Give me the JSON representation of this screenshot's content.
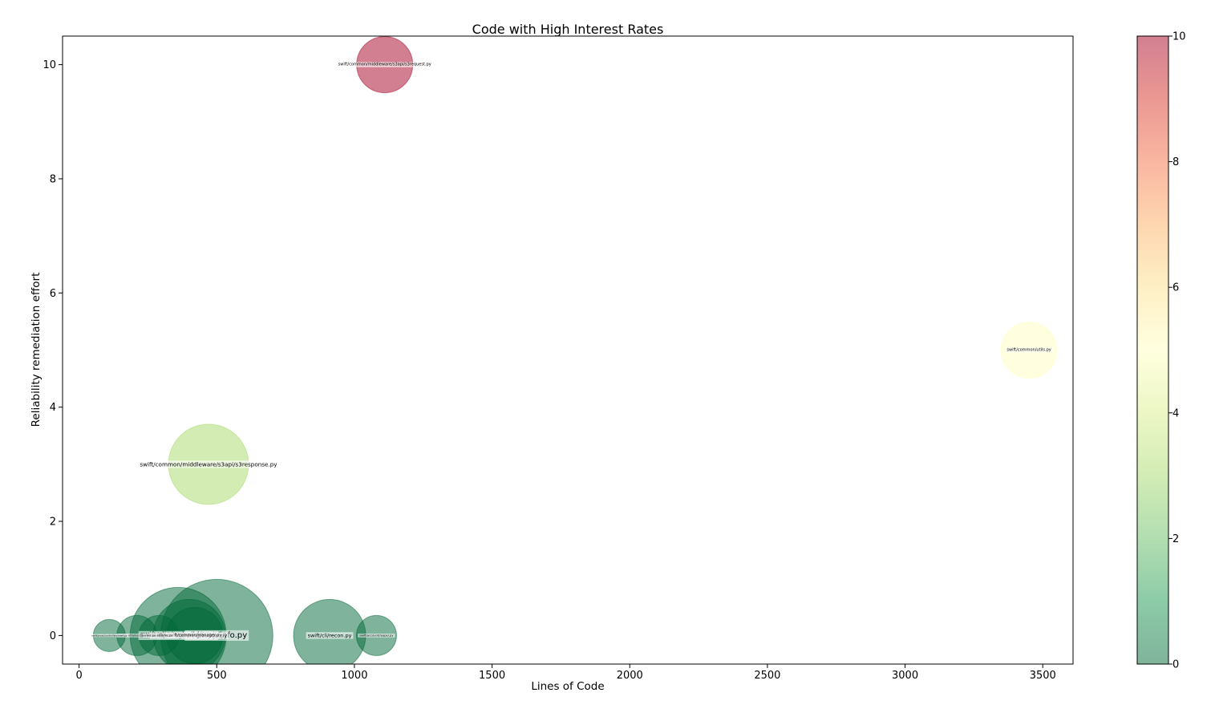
{
  "chart_data": {
    "type": "scatter",
    "title": "Code with High Interest Rates",
    "xlabel": "Lines of Code",
    "ylabel": "Reliability remediation effort",
    "xlim": [
      -60,
      3610
    ],
    "ylim": [
      -0.5,
      10.5
    ],
    "x_ticks": [
      0,
      500,
      1000,
      1500,
      2000,
      2500,
      3000,
      3500
    ],
    "y_ticks": [
      0,
      2,
      4,
      6,
      8,
      10
    ],
    "colorbar": {
      "range": [
        0,
        10
      ],
      "ticks": [
        0,
        2,
        4,
        6,
        8,
        10
      ],
      "colormap": "RdYlGn_r",
      "alpha": 0.5
    },
    "grid": false,
    "points": [
      {
        "label": "swift/common/middleware/s3api/s3request.py",
        "x": 1110,
        "y": 10,
        "color_value": 10,
        "size": 7
      },
      {
        "label": "swift/common/utils.py",
        "x": 3450,
        "y": 5,
        "color_value": 5,
        "size": 7
      },
      {
        "label": "swift/common/middleware/s3api/s3response.py",
        "x": 470,
        "y": 3,
        "color_value": 3,
        "size": 10
      },
      {
        "label": "swift/cli/info.py",
        "x": 500,
        "y": 0,
        "color_value": 0,
        "size": 14
      },
      {
        "label": "swift/cli/recon.py",
        "x": 910,
        "y": 0,
        "color_value": 0,
        "size": 9
      },
      {
        "label": "swift/cli/ringbuilder.py",
        "x": 360,
        "y": 0,
        "color_value": 0,
        "size": 12
      },
      {
        "label": "swift/common/ring/builder.py",
        "x": 400,
        "y": 0,
        "color_value": 0,
        "size": 9
      },
      {
        "label": "swift/common/manager.py",
        "x": 420,
        "y": 0,
        "color_value": 0,
        "size": 7
      },
      {
        "label": "swift/obj/diskfile.py",
        "x": 290,
        "y": 0,
        "color_value": 0,
        "size": 5
      },
      {
        "label": "swift/account/reaper.py",
        "x": 1080,
        "y": 0,
        "color_value": 0,
        "size": 5
      },
      {
        "label": "swift/container/sharder.py",
        "x": 210,
        "y": 0,
        "color_value": 0,
        "size": 5
      },
      {
        "label": "swift/proxy/controllers/base.py",
        "x": 110,
        "y": 0,
        "color_value": 0,
        "size": 4
      }
    ]
  }
}
